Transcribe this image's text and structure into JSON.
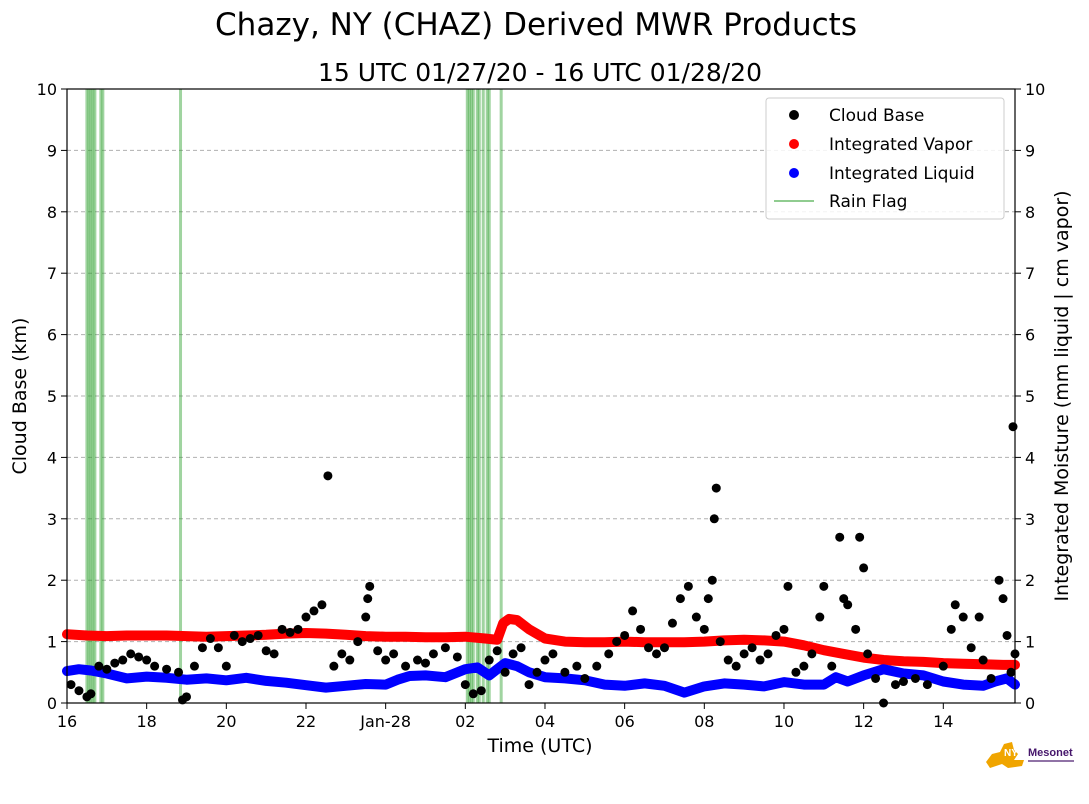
{
  "chart_data": {
    "type": "scatter",
    "title": "Chazy, NY (CHAZ) Derived MWR Products",
    "subtitle": "15 UTC 01/27/20 - 16 UTC 01/28/20",
    "xlabel": "Time (UTC)",
    "ylabel": "Cloud Base (km)",
    "ylabel_right": "Integrated Moisture (mm liquid | cm vapor)",
    "x_ticks": [
      "16",
      "18",
      "20",
      "22",
      "Jan-28",
      "02",
      "04",
      "06",
      "08",
      "10",
      "12",
      "14"
    ],
    "x_tick_hours": [
      16,
      18,
      20,
      22,
      24,
      26,
      28,
      30,
      32,
      34,
      36,
      38
    ],
    "xlim": [
      16,
      39.8
    ],
    "ylim": [
      0,
      10
    ],
    "y_ticks": [
      "0",
      "1",
      "2",
      "3",
      "4",
      "5",
      "6",
      "7",
      "8",
      "9",
      "10"
    ],
    "y_right_ticks": [
      "0",
      "1",
      "2",
      "3",
      "4",
      "5",
      "6",
      "7",
      "8",
      "9",
      "10"
    ],
    "grid": "y-dashed",
    "legend_position": "top-right",
    "legend": [
      "Cloud Base",
      "Integrated Vapor",
      "Integrated Liquid",
      "Rain Flag"
    ],
    "colors": {
      "cloud_base": "#000000",
      "vapor": "#ff0000",
      "liquid": "#0000ff",
      "rain_flag": "#2ca02c"
    },
    "rain_flag_hours": [
      16.5,
      16.55,
      16.6,
      16.65,
      16.7,
      16.85,
      16.9,
      18.85,
      26.05,
      26.1,
      26.15,
      26.2,
      26.3,
      26.35,
      26.45,
      26.55,
      26.6,
      26.9
    ],
    "series": [
      {
        "name": "Integrated Vapor",
        "points": [
          [
            16.0,
            1.12
          ],
          [
            16.5,
            1.1
          ],
          [
            17.0,
            1.09
          ],
          [
            17.5,
            1.1
          ],
          [
            18.0,
            1.1
          ],
          [
            18.5,
            1.1
          ],
          [
            19.0,
            1.09
          ],
          [
            19.5,
            1.08
          ],
          [
            20.0,
            1.09
          ],
          [
            20.5,
            1.1
          ],
          [
            21.0,
            1.11
          ],
          [
            21.5,
            1.13
          ],
          [
            22.0,
            1.14
          ],
          [
            22.5,
            1.13
          ],
          [
            23.0,
            1.11
          ],
          [
            23.5,
            1.09
          ],
          [
            24.0,
            1.08
          ],
          [
            24.5,
            1.08
          ],
          [
            25.0,
            1.07
          ],
          [
            25.5,
            1.07
          ],
          [
            26.0,
            1.08
          ],
          [
            26.5,
            1.05
          ],
          [
            26.8,
            1.03
          ],
          [
            26.95,
            1.3
          ],
          [
            27.1,
            1.37
          ],
          [
            27.3,
            1.35
          ],
          [
            27.6,
            1.2
          ],
          [
            28.0,
            1.05
          ],
          [
            28.5,
            1.0
          ],
          [
            29.0,
            0.99
          ],
          [
            29.5,
            0.99
          ],
          [
            30.0,
            1.0
          ],
          [
            30.5,
            0.99
          ],
          [
            31.0,
            0.99
          ],
          [
            31.5,
            0.99
          ],
          [
            32.0,
            1.0
          ],
          [
            32.5,
            1.02
          ],
          [
            33.0,
            1.03
          ],
          [
            33.5,
            1.02
          ],
          [
            34.0,
            1.0
          ],
          [
            34.5,
            0.94
          ],
          [
            35.0,
            0.86
          ],
          [
            35.5,
            0.8
          ],
          [
            36.0,
            0.74
          ],
          [
            36.5,
            0.7
          ],
          [
            37.0,
            0.68
          ],
          [
            37.5,
            0.67
          ],
          [
            38.0,
            0.65
          ],
          [
            38.5,
            0.64
          ],
          [
            39.0,
            0.63
          ],
          [
            39.5,
            0.62
          ],
          [
            39.8,
            0.62
          ]
        ]
      },
      {
        "name": "Integrated Liquid",
        "points": [
          [
            16.0,
            0.52
          ],
          [
            16.3,
            0.55
          ],
          [
            16.6,
            0.53
          ],
          [
            17.0,
            0.48
          ],
          [
            17.5,
            0.4
          ],
          [
            18.0,
            0.43
          ],
          [
            18.5,
            0.41
          ],
          [
            19.0,
            0.38
          ],
          [
            19.5,
            0.4
          ],
          [
            20.0,
            0.37
          ],
          [
            20.5,
            0.41
          ],
          [
            21.0,
            0.36
          ],
          [
            21.5,
            0.33
          ],
          [
            22.0,
            0.29
          ],
          [
            22.5,
            0.25
          ],
          [
            23.0,
            0.28
          ],
          [
            23.5,
            0.31
          ],
          [
            24.0,
            0.3
          ],
          [
            24.3,
            0.38
          ],
          [
            24.6,
            0.44
          ],
          [
            25.0,
            0.45
          ],
          [
            25.5,
            0.42
          ],
          [
            26.0,
            0.55
          ],
          [
            26.3,
            0.58
          ],
          [
            26.6,
            0.45
          ],
          [
            26.8,
            0.55
          ],
          [
            27.0,
            0.65
          ],
          [
            27.3,
            0.6
          ],
          [
            27.6,
            0.5
          ],
          [
            28.0,
            0.42
          ],
          [
            28.5,
            0.4
          ],
          [
            29.0,
            0.37
          ],
          [
            29.5,
            0.3
          ],
          [
            30.0,
            0.28
          ],
          [
            30.5,
            0.32
          ],
          [
            31.0,
            0.28
          ],
          [
            31.5,
            0.17
          ],
          [
            32.0,
            0.27
          ],
          [
            32.5,
            0.32
          ],
          [
            33.0,
            0.3
          ],
          [
            33.5,
            0.27
          ],
          [
            34.0,
            0.34
          ],
          [
            34.5,
            0.3
          ],
          [
            35.0,
            0.3
          ],
          [
            35.3,
            0.42
          ],
          [
            35.6,
            0.35
          ],
          [
            36.0,
            0.45
          ],
          [
            36.5,
            0.55
          ],
          [
            37.0,
            0.48
          ],
          [
            37.5,
            0.45
          ],
          [
            38.0,
            0.35
          ],
          [
            38.5,
            0.3
          ],
          [
            39.0,
            0.28
          ],
          [
            39.3,
            0.35
          ],
          [
            39.6,
            0.4
          ],
          [
            39.8,
            0.3
          ]
        ]
      },
      {
        "name": "Cloud Base",
        "points": [
          [
            16.1,
            0.3
          ],
          [
            16.3,
            0.2
          ],
          [
            16.5,
            0.1
          ],
          [
            16.6,
            0.15
          ],
          [
            16.8,
            0.6
          ],
          [
            17.0,
            0.55
          ],
          [
            17.2,
            0.65
          ],
          [
            17.4,
            0.7
          ],
          [
            17.6,
            0.8
          ],
          [
            17.8,
            0.75
          ],
          [
            18.0,
            0.7
          ],
          [
            18.2,
            0.6
          ],
          [
            18.5,
            0.55
          ],
          [
            18.8,
            0.5
          ],
          [
            18.9,
            0.05
          ],
          [
            19.0,
            0.1
          ],
          [
            19.2,
            0.6
          ],
          [
            19.4,
            0.9
          ],
          [
            19.6,
            1.05
          ],
          [
            19.8,
            0.9
          ],
          [
            20.0,
            0.6
          ],
          [
            20.2,
            1.1
          ],
          [
            20.4,
            1.0
          ],
          [
            20.6,
            1.05
          ],
          [
            20.8,
            1.1
          ],
          [
            21.0,
            0.85
          ],
          [
            21.2,
            0.8
          ],
          [
            21.4,
            1.2
          ],
          [
            21.6,
            1.15
          ],
          [
            21.8,
            1.2
          ],
          [
            22.0,
            1.4
          ],
          [
            22.2,
            1.5
          ],
          [
            22.4,
            1.6
          ],
          [
            22.55,
            3.7
          ],
          [
            22.7,
            0.6
          ],
          [
            22.9,
            0.8
          ],
          [
            23.1,
            0.7
          ],
          [
            23.3,
            1.0
          ],
          [
            23.5,
            1.4
          ],
          [
            23.55,
            1.7
          ],
          [
            23.6,
            1.9
          ],
          [
            23.8,
            0.85
          ],
          [
            24.0,
            0.7
          ],
          [
            24.2,
            0.8
          ],
          [
            24.5,
            0.6
          ],
          [
            24.8,
            0.7
          ],
          [
            25.0,
            0.65
          ],
          [
            25.2,
            0.8
          ],
          [
            25.5,
            0.9
          ],
          [
            25.8,
            0.75
          ],
          [
            26.0,
            0.3
          ],
          [
            26.2,
            0.15
          ],
          [
            26.4,
            0.2
          ],
          [
            26.6,
            0.7
          ],
          [
            26.8,
            0.85
          ],
          [
            27.0,
            0.5
          ],
          [
            27.2,
            0.8
          ],
          [
            27.4,
            0.9
          ],
          [
            27.6,
            0.3
          ],
          [
            27.8,
            0.5
          ],
          [
            28.0,
            0.7
          ],
          [
            28.2,
            0.8
          ],
          [
            28.5,
            0.5
          ],
          [
            28.8,
            0.6
          ],
          [
            29.0,
            0.4
          ],
          [
            29.3,
            0.6
          ],
          [
            29.6,
            0.8
          ],
          [
            29.8,
            1.0
          ],
          [
            30.0,
            1.1
          ],
          [
            30.2,
            1.5
          ],
          [
            30.4,
            1.2
          ],
          [
            30.6,
            0.9
          ],
          [
            30.8,
            0.8
          ],
          [
            31.0,
            0.9
          ],
          [
            31.2,
            1.3
          ],
          [
            31.4,
            1.7
          ],
          [
            31.6,
            1.9
          ],
          [
            31.8,
            1.4
          ],
          [
            32.0,
            1.2
          ],
          [
            32.1,
            1.7
          ],
          [
            32.2,
            2.0
          ],
          [
            32.25,
            3.0
          ],
          [
            32.3,
            3.5
          ],
          [
            32.4,
            1.0
          ],
          [
            32.6,
            0.7
          ],
          [
            32.8,
            0.6
          ],
          [
            33.0,
            0.8
          ],
          [
            33.2,
            0.9
          ],
          [
            33.4,
            0.7
          ],
          [
            33.6,
            0.8
          ],
          [
            33.8,
            1.1
          ],
          [
            34.0,
            1.2
          ],
          [
            34.1,
            1.9
          ],
          [
            34.3,
            0.5
          ],
          [
            34.5,
            0.6
          ],
          [
            34.7,
            0.8
          ],
          [
            34.9,
            1.4
          ],
          [
            35.0,
            1.9
          ],
          [
            35.2,
            0.6
          ],
          [
            35.4,
            2.7
          ],
          [
            35.5,
            1.7
          ],
          [
            35.6,
            1.6
          ],
          [
            35.8,
            1.2
          ],
          [
            35.9,
            2.7
          ],
          [
            36.0,
            2.2
          ],
          [
            36.1,
            0.8
          ],
          [
            36.3,
            0.4
          ],
          [
            36.5,
            0.0
          ],
          [
            36.8,
            0.3
          ],
          [
            37.0,
            0.35
          ],
          [
            37.3,
            0.4
          ],
          [
            37.6,
            0.3
          ],
          [
            38.0,
            0.6
          ],
          [
            38.2,
            1.2
          ],
          [
            38.3,
            1.6
          ],
          [
            38.5,
            1.4
          ],
          [
            38.7,
            0.9
          ],
          [
            38.9,
            1.4
          ],
          [
            39.0,
            0.7
          ],
          [
            39.2,
            0.4
          ],
          [
            39.4,
            2.0
          ],
          [
            39.5,
            1.7
          ],
          [
            39.6,
            1.1
          ],
          [
            39.7,
            0.5
          ],
          [
            39.75,
            4.5
          ],
          [
            39.8,
            0.8
          ]
        ]
      }
    ],
    "logo_text": "NYS Mesonet"
  }
}
